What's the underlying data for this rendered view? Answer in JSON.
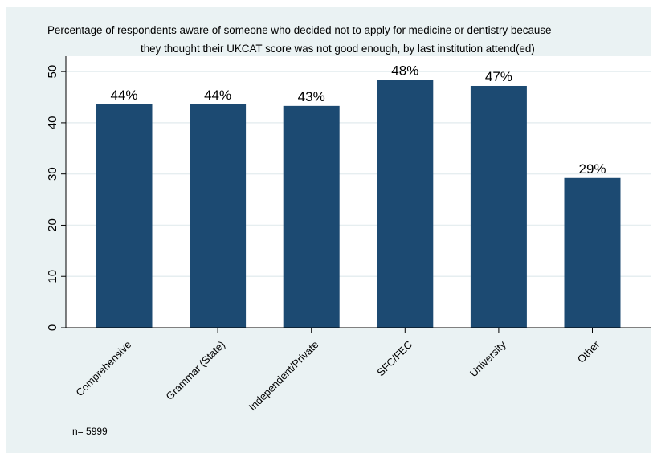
{
  "chart_data": {
    "type": "bar",
    "title_lines": [
      "Percentage of respondents aware of someone who decided not to apply for medicine or dentistry because",
      "they thought their UKCAT score was not good enough, by last institution attend(ed)"
    ],
    "categories": [
      "Comprehensive",
      "Grammar (State)",
      "Independent/Private",
      "SFC/FEC",
      "University",
      "Other"
    ],
    "values": [
      43.6,
      43.6,
      43.3,
      48.4,
      47.2,
      29.2
    ],
    "data_labels": [
      "44%",
      "44%",
      "43%",
      "48%",
      "47%",
      "29%"
    ],
    "yticks": [
      0,
      10,
      20,
      30,
      40,
      50
    ],
    "ylim": [
      0,
      53
    ],
    "xlabel": "",
    "ylabel": "",
    "grid": true,
    "bar_color": "#1c4a72",
    "note": "n= 5999"
  }
}
